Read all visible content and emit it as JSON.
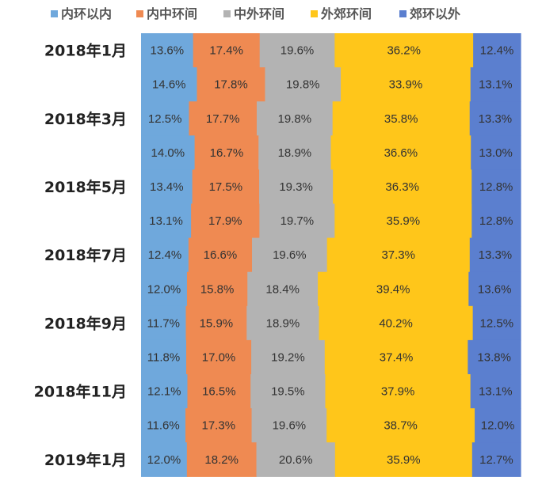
{
  "chart_data": {
    "type": "bar",
    "stacked": "percent",
    "orientation": "horizontal",
    "categories": [
      "2018年1月",
      "",
      "2018年3月",
      "",
      "2018年5月",
      "",
      "2018年7月",
      "",
      "2018年9月",
      "",
      "2018年11月",
      "",
      "2019年1月"
    ],
    "series": [
      {
        "name": "内环以内",
        "color": "#6fa8dc",
        "values": [
          13.6,
          14.6,
          12.5,
          14.0,
          13.4,
          13.1,
          12.4,
          12.0,
          11.7,
          11.8,
          12.1,
          11.6,
          12.0
        ]
      },
      {
        "name": "内中环间",
        "color": "#ef8a52",
        "values": [
          17.4,
          17.8,
          17.7,
          16.7,
          17.5,
          17.9,
          16.6,
          15.8,
          15.9,
          17.0,
          16.5,
          17.3,
          18.2
        ]
      },
      {
        "name": "中外环间",
        "color": "#b3b3b3",
        "values": [
          19.6,
          19.8,
          19.8,
          18.9,
          19.3,
          19.7,
          19.6,
          18.4,
          18.9,
          19.2,
          19.5,
          19.6,
          20.6
        ]
      },
      {
        "name": "外郊环间",
        "color": "#ffc61a",
        "values": [
          36.2,
          33.9,
          35.8,
          36.6,
          36.3,
          35.9,
          37.3,
          39.4,
          40.2,
          37.4,
          37.9,
          38.7,
          35.9
        ]
      },
      {
        "name": "郊环以外",
        "color": "#5b7fcf",
        "values": [
          12.4,
          13.1,
          13.3,
          13.0,
          12.8,
          12.8,
          13.3,
          13.6,
          12.5,
          13.8,
          13.1,
          12.0,
          12.7
        ]
      }
    ],
    "title": "",
    "xlabel": "",
    "ylabel": "",
    "xlim": [
      0,
      100
    ],
    "grid": false,
    "legend_position": "top",
    "value_suffix": "%"
  }
}
